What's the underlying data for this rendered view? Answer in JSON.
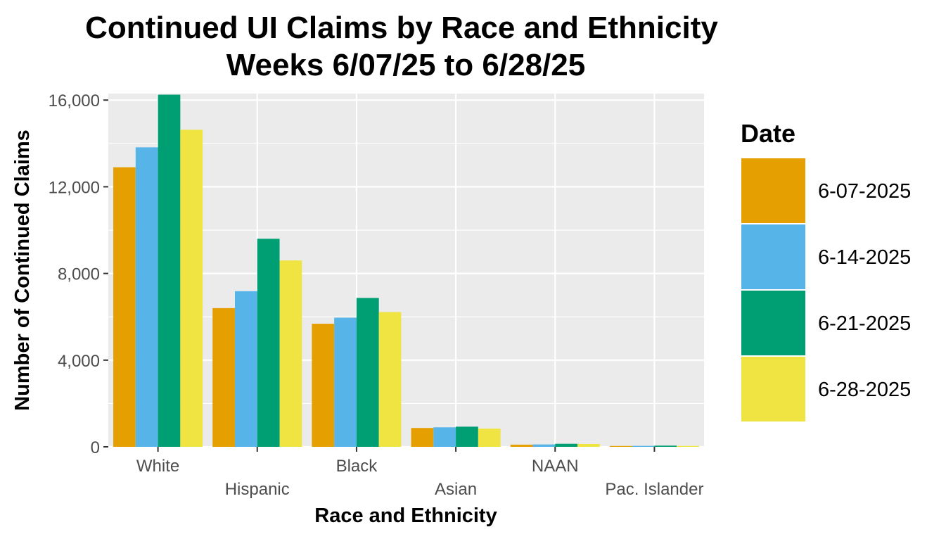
{
  "chart_data": {
    "type": "bar",
    "title": "Continued UI Claims by Race and Ethnicity",
    "subtitle": "Weeks 6/07/25 to 6/28/25",
    "xlabel": "Race and Ethnicity",
    "ylabel": "Number of Continued Claims",
    "categories": [
      "White",
      "Hispanic",
      "Black",
      "Asian",
      "NAAN",
      "Pac. Islander"
    ],
    "yticks": [
      0,
      4000,
      8000,
      12000,
      16000
    ],
    "ytick_labels": [
      "0",
      "4,000",
      "8,000",
      "12,000",
      "16,000"
    ],
    "ylim": [
      0,
      16300
    ],
    "grid": true,
    "legend": {
      "title": "Date",
      "position": "right"
    },
    "series": [
      {
        "name": "6-07-2025",
        "color": "#E69F00",
        "values": [
          12900,
          6400,
          5680,
          870,
          100,
          40
        ]
      },
      {
        "name": "6-14-2025",
        "color": "#56B4E9",
        "values": [
          13820,
          7180,
          5960,
          900,
          110,
          45
        ]
      },
      {
        "name": "6-21-2025",
        "color": "#009E73",
        "values": [
          16250,
          9600,
          6870,
          930,
          140,
          55
        ]
      },
      {
        "name": "6-28-2025",
        "color": "#F0E442",
        "values": [
          14630,
          8600,
          6220,
          840,
          130,
          40
        ]
      }
    ]
  },
  "colors": {
    "panel_background": "#EBEBEB",
    "grid": "#FFFFFF"
  }
}
